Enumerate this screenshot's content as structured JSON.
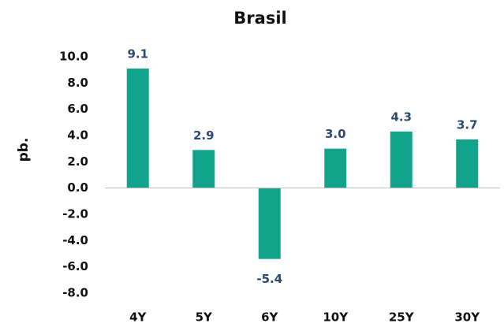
{
  "chart_data": {
    "type": "bar",
    "title": "Brasil",
    "y_label": "pb.",
    "categories": [
      "4Y",
      "5Y",
      "6Y",
      "10Y",
      "25Y",
      "30Y"
    ],
    "values": [
      9.1,
      2.9,
      -5.4,
      3.0,
      4.3,
      3.7
    ],
    "value_labels": [
      "9.1",
      "2.9",
      "-5.4",
      "3.0",
      "4.3",
      "3.7"
    ],
    "color": "#12a38c",
    "ylim": [
      -8,
      10
    ],
    "yticks": [
      {
        "value": 10,
        "label": "10.0"
      },
      {
        "value": 8,
        "label": "8.0"
      },
      {
        "value": 6,
        "label": "6.0"
      },
      {
        "value": 4,
        "label": "4.0"
      },
      {
        "value": 2,
        "label": "2.0"
      },
      {
        "value": 0,
        "label": "0.0"
      },
      {
        "value": -2,
        "label": "-2.0"
      },
      {
        "value": -4,
        "label": "-4.0"
      },
      {
        "value": -6,
        "label": "-6.0"
      },
      {
        "value": -8,
        "label": "-8.0"
      }
    ],
    "grid": false
  }
}
